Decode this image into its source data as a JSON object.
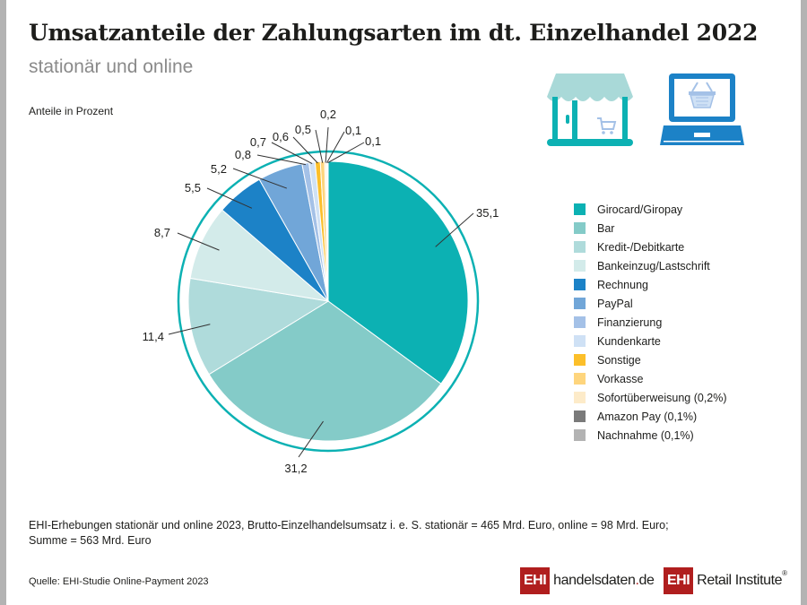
{
  "header": {
    "title": "Umsatzanteile der Zahlungsarten im dt. Einzelhandel 2022",
    "subtitle": "stationär und online",
    "unit_label": "Anteile in Prozent"
  },
  "icons": {
    "store": "store-with-cart-icon",
    "laptop": "laptop-with-basket-icon"
  },
  "chart_data": {
    "type": "pie",
    "title": "Umsatzanteile der Zahlungsarten im dt. Einzelhandel 2022",
    "subtitle": "stationär und online",
    "unit": "Anteile in Prozent",
    "start": "12 o'clock",
    "direction": "clockwise",
    "legend_position": "right",
    "slices": [
      {
        "label": "Girocard/Giropay",
        "value": 35.1,
        "display": "35,1",
        "color": "#0cb1b3"
      },
      {
        "label": "Bar",
        "value": 31.2,
        "display": "31,2",
        "color": "#84cbc8"
      },
      {
        "label": "Kredit-/Debitkarte",
        "value": 11.4,
        "display": "11,4",
        "color": "#afdbdb"
      },
      {
        "label": "Bankeinzug/Lastschrift",
        "value": 8.7,
        "display": "8,7",
        "color": "#d3ebea"
      },
      {
        "label": "Rechnung",
        "value": 5.5,
        "display": "5,5",
        "color": "#1c82c7"
      },
      {
        "label": "PayPal",
        "value": 5.2,
        "display": "5,2",
        "color": "#71a6d8"
      },
      {
        "label": "Finanzierung",
        "value": 0.8,
        "display": "0,8",
        "color": "#a4c1e7"
      },
      {
        "label": "Kundenkarte",
        "value": 0.7,
        "display": "0,7",
        "color": "#cfe1f5"
      },
      {
        "label": "Sonstige",
        "value": 0.6,
        "display": "0,6",
        "color": "#fcbf2a"
      },
      {
        "label": "Vorkasse",
        "value": 0.5,
        "display": "0,5",
        "color": "#fed57d"
      },
      {
        "label": "Sofortüberweisung (0,2%)",
        "value": 0.2,
        "display": "0,2",
        "color": "#fdebc9"
      },
      {
        "label": "Amazon Pay (0,1%)",
        "value": 0.1,
        "display": "0,1",
        "color": "#7a7a7a"
      },
      {
        "label": "Nachnahme (0,1%)",
        "value": 0.1,
        "display": "0,1",
        "color": "#b3b3b3"
      }
    ],
    "ring_color": "#0cb1b3"
  },
  "footnote": {
    "line1": "EHI-Erhebungen stationär und online 2023, Brutto-Einzelhandelsumsatz i. e. S. stationär = 465 Mrd. Euro, online = 98 Mrd. Euro;",
    "line2": "Summe = 563 Mrd. Euro"
  },
  "source": "Quelle: EHI-Studie Online-Payment 2023",
  "logos": {
    "handelsdaten": {
      "box": "EHI",
      "text_main": "handelsdaten",
      "text_dot": ".",
      "text_tld": "de"
    },
    "retail": {
      "box": "EHI",
      "text": "Retail Institute",
      "reg": "®"
    }
  }
}
